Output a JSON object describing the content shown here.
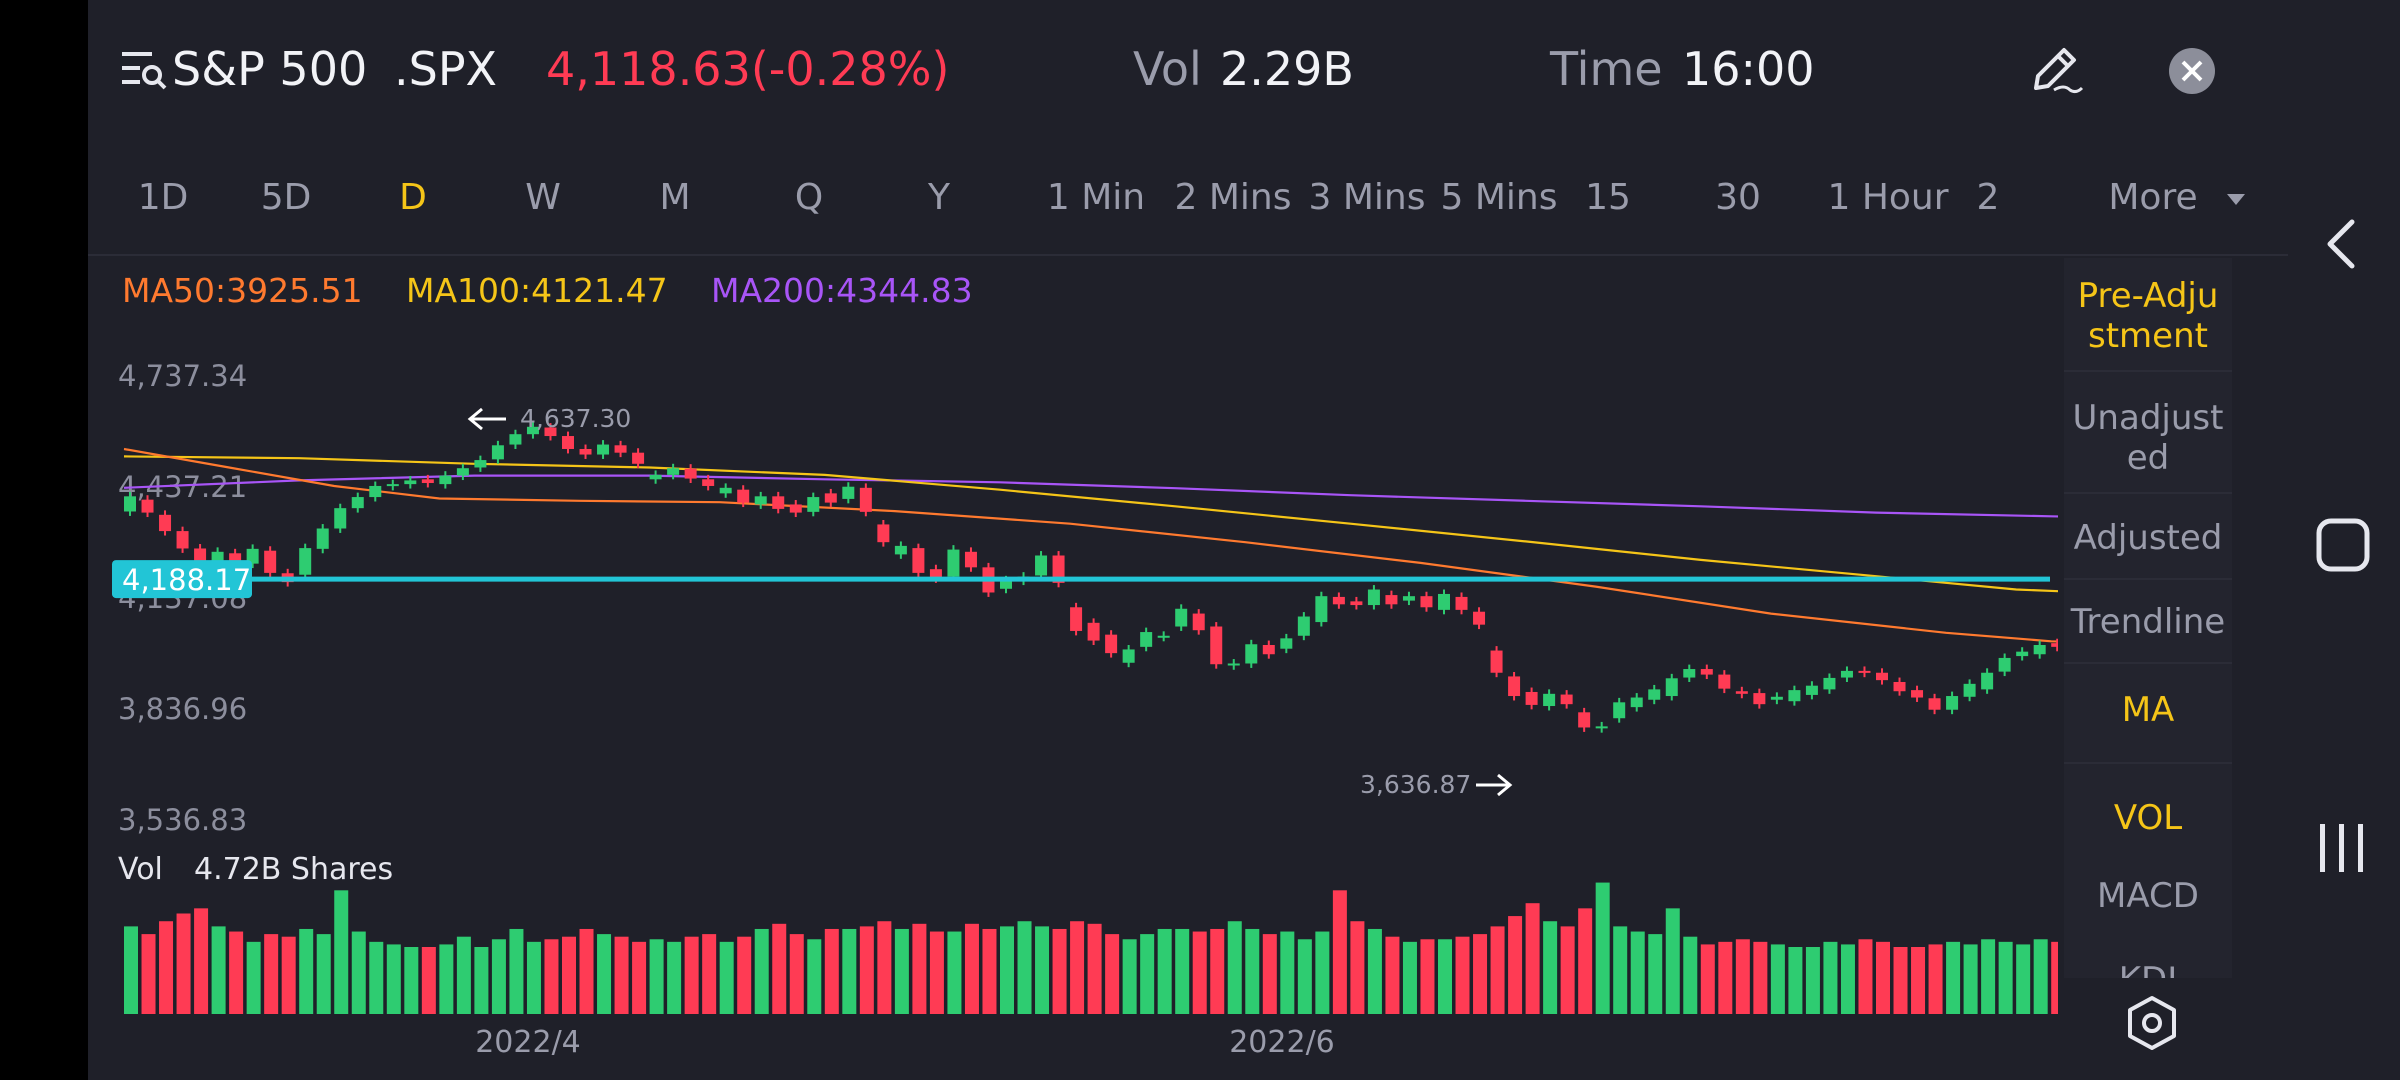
{
  "header": {
    "symbol_name": "S&P 500",
    "ticker": ".SPX",
    "price_change": "4,118.63(-0.28%)",
    "vol_label": "Vol",
    "vol_value": "2.29B",
    "time_label": "Time",
    "time_value": "16:00"
  },
  "timeframes": [
    "1D",
    "5D",
    "D",
    "W",
    "M",
    "Q",
    "Y",
    "1 Min",
    "2 Mins",
    "3 Mins",
    "5 Mins",
    "15",
    "30",
    "1 Hour",
    "2"
  ],
  "active_timeframe": "D",
  "more_label": "More",
  "indicators": {
    "ma50": "MA50:3925.51",
    "ma100": "MA100:4121.47",
    "ma200": "MA200:4344.83"
  },
  "y_axis_labels": [
    "4,737.34",
    "4,437.21",
    "4,137.08",
    "3,836.96",
    "3,536.83"
  ],
  "hline_label": "4,188.17",
  "high_label": "4,637.30",
  "low_label": "3,636.87",
  "volume": {
    "label": "Vol",
    "value": "4.72B Shares"
  },
  "x_axis_labels": [
    "2022/4",
    "2022/6"
  ],
  "side_panel": [
    {
      "label": "Pre-Adju stment",
      "active": true
    },
    {
      "label": "Unadjust ed",
      "active": false
    },
    {
      "label": "Adjusted",
      "active": false
    },
    {
      "label": "Trendline",
      "active": false
    },
    {
      "label": "MA",
      "active": true
    },
    {
      "label": "VOL",
      "active": true
    },
    {
      "label": "MACD",
      "active": false
    },
    {
      "label": "KDJ",
      "active": false
    }
  ],
  "colors": {
    "background": "#1f2029",
    "up": "#2ecc71",
    "down": "#ff3b54",
    "ma50": "#ff7a2f",
    "ma100": "#f5c518",
    "ma200": "#a855f7",
    "hline": "#22c5d6",
    "accent": "#f5c518"
  },
  "chart_data": {
    "type": "candlestick",
    "y_range": [
      3536.83,
      4737.34
    ],
    "x_ticks": [
      "2022/4",
      "2022/6"
    ],
    "candles": [
      [
        4371,
        4412
      ],
      [
        4403,
        4368
      ],
      [
        4362,
        4318
      ],
      [
        4318,
        4271
      ],
      [
        4271,
        4195
      ],
      [
        4212,
        4262
      ],
      [
        4258,
        4230
      ],
      [
        4230,
        4270
      ],
      [
        4265,
        4205
      ],
      [
        4204,
        4180
      ],
      [
        4200,
        4272
      ],
      [
        4270,
        4325
      ],
      [
        4325,
        4380
      ],
      [
        4380,
        4410
      ],
      [
        4410,
        4440
      ],
      [
        4440,
        4445
      ],
      [
        4445,
        4455
      ],
      [
        4458,
        4448
      ],
      [
        4445,
        4468
      ],
      [
        4468,
        4488
      ],
      [
        4490,
        4510
      ],
      [
        4512,
        4550
      ],
      [
        4552,
        4580
      ],
      [
        4580,
        4600
      ],
      [
        4598,
        4575
      ],
      [
        4575,
        4540
      ],
      [
        4540,
        4525
      ],
      [
        4525,
        4552
      ],
      [
        4550,
        4530
      ],
      [
        4530,
        4500
      ],
      [
        4458,
        4470
      ],
      [
        4470,
        4488
      ],
      [
        4487,
        4460
      ],
      [
        4458,
        4440
      ],
      [
        4420,
        4435
      ],
      [
        4430,
        4395
      ],
      [
        4390,
        4412
      ],
      [
        4412,
        4378
      ],
      [
        4390,
        4368
      ],
      [
        4370,
        4410
      ],
      [
        4420,
        4395
      ],
      [
        4405,
        4438
      ],
      [
        4435,
        4370
      ],
      [
        4336,
        4288
      ],
      [
        4255,
        4278
      ],
      [
        4272,
        4205
      ],
      [
        4215,
        4190
      ],
      [
        4195,
        4268
      ],
      [
        4262,
        4220
      ],
      [
        4220,
        4152
      ],
      [
        4162,
        4185
      ],
      [
        4184,
        4195
      ],
      [
        4198,
        4252
      ],
      [
        4252,
        4178
      ],
      [
        4112,
        4048
      ],
      [
        4070,
        4022
      ],
      [
        4038,
        3988
      ],
      [
        3962,
        3998
      ],
      [
        4005,
        4045
      ],
      [
        4032,
        4035
      ],
      [
        4060,
        4108
      ],
      [
        4095,
        4050
      ],
      [
        4060,
        3958
      ],
      [
        3955,
        3960
      ],
      [
        3960,
        4012
      ],
      [
        4010,
        3985
      ],
      [
        4000,
        4028
      ],
      [
        4035,
        4087
      ],
      [
        4072,
        4142
      ],
      [
        4140,
        4120
      ],
      [
        4128,
        4118
      ],
      [
        4118,
        4160
      ],
      [
        4145,
        4120
      ],
      [
        4130,
        4142
      ],
      [
        4142,
        4112
      ],
      [
        4105,
        4148
      ],
      [
        4140,
        4105
      ],
      [
        4100,
        4065
      ],
      [
        3995,
        3935
      ],
      [
        3925,
        3872
      ],
      [
        3883,
        3848
      ],
      [
        3845,
        3878
      ],
      [
        3876,
        3850
      ],
      [
        3828,
        3787
      ],
      [
        3785,
        3790
      ],
      [
        3812,
        3855
      ],
      [
        3842,
        3868
      ],
      [
        3862,
        3890
      ],
      [
        3872,
        3920
      ],
      [
        3922,
        3945
      ],
      [
        3945,
        3930
      ],
      [
        3930,
        3892
      ],
      [
        3885,
        3878
      ],
      [
        3880,
        3850
      ],
      [
        3862,
        3870
      ],
      [
        3858,
        3888
      ],
      [
        3875,
        3900
      ],
      [
        3890,
        3921
      ],
      [
        3922,
        3940
      ],
      [
        3940,
        3935
      ],
      [
        3935,
        3915
      ],
      [
        3910,
        3885
      ],
      [
        3888,
        3868
      ],
      [
        3866,
        3835
      ],
      [
        3835,
        3872
      ],
      [
        3870,
        3905
      ],
      [
        3890,
        3935
      ],
      [
        3938,
        3975
      ],
      [
        3980,
        3992
      ],
      [
        3985,
        4010
      ],
      [
        4015,
        4005
      ],
      [
        4008,
        4014
      ],
      [
        3985,
        3998
      ],
      [
        4002,
        4035
      ],
      [
        4038,
        4074
      ],
      [
        4084,
        4094
      ],
      [
        4096,
        4110
      ]
    ],
    "ma50": [
      [
        0,
        4540
      ],
      [
        6,
        4490
      ],
      [
        12,
        4440
      ],
      [
        18,
        4406
      ],
      [
        26,
        4400
      ],
      [
        34,
        4396
      ],
      [
        44,
        4372
      ],
      [
        54,
        4338
      ],
      [
        64,
        4288
      ],
      [
        74,
        4232
      ],
      [
        84,
        4168
      ],
      [
        94,
        4095
      ],
      [
        104,
        4043
      ],
      [
        110,
        4020
      ],
      [
        116,
        4015
      ]
    ],
    "ma100": [
      [
        0,
        4520
      ],
      [
        10,
        4515
      ],
      [
        20,
        4500
      ],
      [
        30,
        4490
      ],
      [
        40,
        4470
      ],
      [
        50,
        4430
      ],
      [
        60,
        4385
      ],
      [
        70,
        4338
      ],
      [
        80,
        4290
      ],
      [
        90,
        4240
      ],
      [
        100,
        4196
      ],
      [
        108,
        4160
      ],
      [
        116,
        4145
      ]
    ],
    "ma200": [
      [
        0,
        4435
      ],
      [
        10,
        4455
      ],
      [
        20,
        4468
      ],
      [
        30,
        4468
      ],
      [
        40,
        4458
      ],
      [
        50,
        4450
      ],
      [
        60,
        4434
      ],
      [
        70,
        4415
      ],
      [
        80,
        4400
      ],
      [
        90,
        4385
      ],
      [
        100,
        4368
      ],
      [
        110,
        4358
      ],
      [
        116,
        4352
      ]
    ],
    "hline": 4188.17,
    "volume_range": [
      0,
      5.2
    ],
    "volume": [
      3.4,
      3.1,
      3.6,
      3.9,
      4.1,
      3.4,
      3.2,
      2.8,
      3.1,
      3.0,
      3.3,
      3.1,
      4.8,
      3.2,
      2.8,
      2.7,
      2.6,
      2.6,
      2.7,
      3.0,
      2.6,
      2.9,
      3.3,
      2.8,
      2.9,
      3.0,
      3.3,
      3.1,
      3.0,
      2.8,
      2.9,
      2.8,
      3.0,
      3.1,
      2.8,
      3.0,
      3.3,
      3.5,
      3.1,
      2.9,
      3.3,
      3.3,
      3.4,
      3.6,
      3.3,
      3.5,
      3.2,
      3.2,
      3.5,
      3.3,
      3.4,
      3.6,
      3.4,
      3.3,
      3.6,
      3.5,
      3.1,
      2.9,
      3.1,
      3.3,
      3.3,
      3.2,
      3.3,
      3.6,
      3.3,
      3.1,
      3.2,
      2.9,
      3.2,
      4.8,
      3.6,
      3.3,
      3.0,
      2.8,
      2.9,
      2.9,
      3.0,
      3.1,
      3.4,
      3.8,
      4.3,
      3.6,
      3.4,
      4.1,
      5.1,
      3.4,
      3.2,
      3.1,
      4.1,
      3.0,
      2.7,
      2.8,
      2.9,
      2.8,
      2.7,
      2.6,
      2.6,
      2.8,
      2.7,
      2.9,
      2.8,
      2.6,
      2.6,
      2.7,
      2.8,
      2.7,
      2.9,
      2.8,
      2.7,
      2.9,
      2.8,
      2.8,
      2.7,
      3.1,
      3.2,
      3.3,
      2.9
    ]
  }
}
